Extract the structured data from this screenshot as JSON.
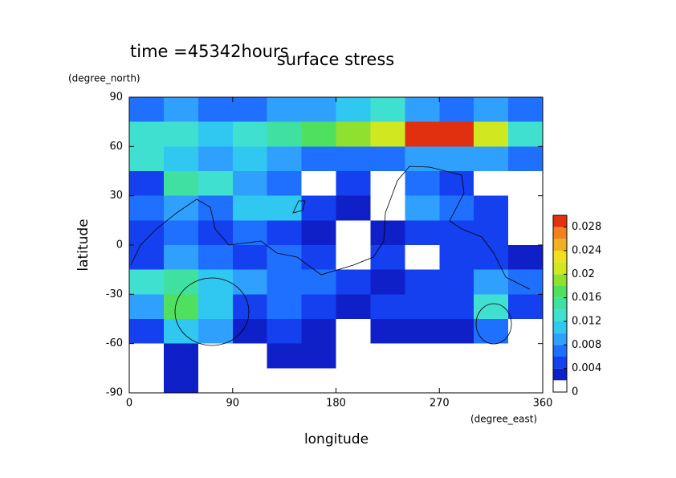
{
  "chart_data": {
    "type": "contour",
    "title": "surface stress",
    "subtitle": "time =45342hours",
    "x_label": "longitude",
    "x_unit": "(degree_east)",
    "y_label": "latitude",
    "y_unit": "(degree_north)",
    "xlim": [
      0,
      360
    ],
    "ylim": [
      -90,
      90
    ],
    "xticks": [
      0,
      90,
      180,
      270,
      360
    ],
    "yticks": [
      -90,
      -60,
      -30,
      0,
      30,
      60,
      90
    ],
    "lon_edges": [
      0,
      30,
      60,
      90,
      120,
      150,
      180,
      210,
      240,
      270,
      300,
      330,
      360
    ],
    "lat_edges": [
      90,
      75,
      60,
      45,
      30,
      15,
      0,
      -15,
      -30,
      -45,
      -60,
      -75,
      -90
    ],
    "z": [
      [
        0.006,
        0.008,
        0.006,
        0.006,
        0.008,
        0.008,
        0.01,
        0.012,
        0.008,
        0.006,
        0.008,
        0.006
      ],
      [
        0.012,
        0.012,
        0.01,
        0.012,
        0.014,
        0.016,
        0.018,
        0.02,
        0.03,
        0.03,
        0.02,
        0.012
      ],
      [
        0.012,
        0.01,
        0.008,
        0.01,
        0.008,
        0.006,
        0.006,
        0.006,
        0.008,
        0.008,
        0.008,
        0.006
      ],
      [
        0.004,
        0.014,
        0.012,
        0.008,
        0.006,
        0,
        0.004,
        0,
        0.006,
        0.004,
        0,
        0
      ],
      [
        0.006,
        0.008,
        0.006,
        0.01,
        0.01,
        0.004,
        0.002,
        0,
        0.008,
        0.006,
        0.004,
        0
      ],
      [
        0.004,
        0.006,
        0.004,
        0.006,
        0.004,
        0.002,
        0,
        0.002,
        0.004,
        0.004,
        0.004,
        0
      ],
      [
        0.004,
        0.008,
        0.006,
        0.004,
        0.006,
        0.004,
        0,
        0.004,
        0,
        0.004,
        0.004,
        0.002
      ],
      [
        0.012,
        0.014,
        0.01,
        0.008,
        0.006,
        0.006,
        0.004,
        0.002,
        0.004,
        0.004,
        0.008,
        0.006
      ],
      [
        0.008,
        0.016,
        0.01,
        0.004,
        0.006,
        0.004,
        0.002,
        0.004,
        0.004,
        0.004,
        0.012,
        0.004
      ],
      [
        0.004,
        0.01,
        0.008,
        0.002,
        0.004,
        0.002,
        0,
        0.002,
        0.002,
        0.002,
        0.006,
        0
      ],
      [
        0,
        0.002,
        0,
        0,
        0.002,
        0.002,
        0,
        0,
        0,
        0,
        0,
        0
      ],
      [
        0,
        0.002,
        0,
        0,
        0,
        0,
        0,
        0,
        0,
        0,
        0,
        0
      ]
    ],
    "levels": [
      0,
      0.002,
      0.004,
      0.006,
      0.008,
      0.01,
      0.012,
      0.014,
      0.016,
      0.018,
      0.02,
      0.022,
      0.024,
      0.026,
      0.028,
      0.03
    ],
    "colors": [
      "#ffffff",
      "#1020c8",
      "#1440f0",
      "#2070ff",
      "#30a0ff",
      "#30c8f0",
      "#40e0d0",
      "#40e0a0",
      "#50e060",
      "#90e030",
      "#d0e820",
      "#f0e020",
      "#f0b020",
      "#f08020",
      "#e03010"
    ],
    "colorbar_ticks": [
      0,
      0.004,
      0.008,
      0.012,
      0.016,
      0.02,
      0.024,
      0.028
    ]
  }
}
